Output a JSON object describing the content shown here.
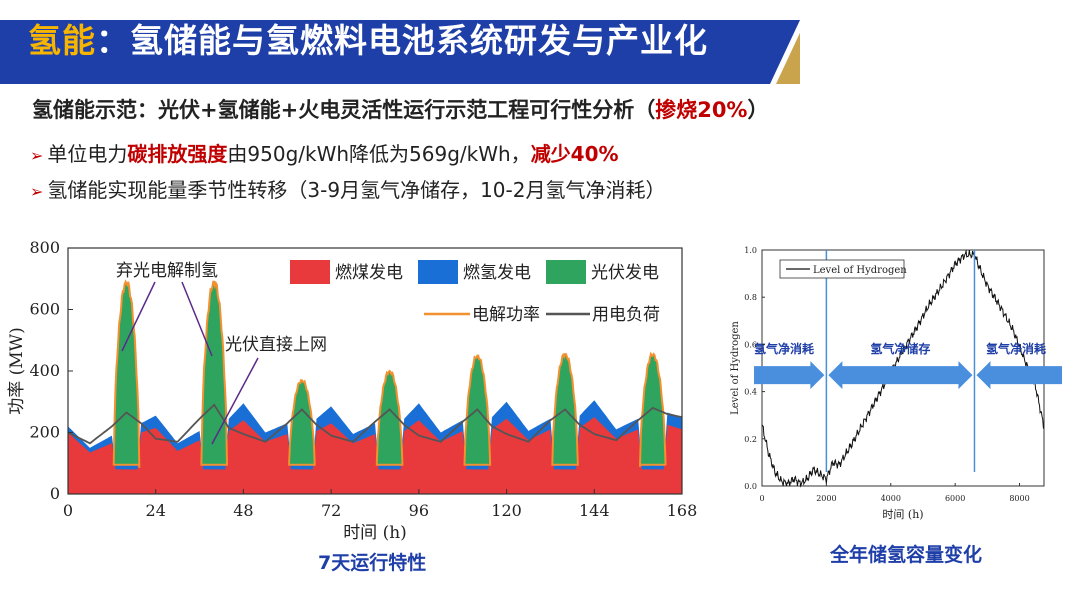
{
  "header": {
    "title_key": "氢能",
    "title_rest": "：氢储能与氢燃料电池系统研发与产业化",
    "logo_mark": "GSF",
    "logo_sub": "广州·南沙",
    "logo_cn": "大湾区科学论坛",
    "logo_en": "Greater Bay Area Science Forum",
    "colors": {
      "title_bar": "#1f3fa8",
      "accent": "#f7b500",
      "logo_bg": "#c9a44c"
    }
  },
  "subheading": {
    "label": "氢储能示范：",
    "text": "光伏+氢储能+火电灵活性运行示范工程可行性分析（",
    "highlight": "掺烧20%",
    "close": "）"
  },
  "bullets": [
    {
      "pre": "单位电力",
      "red1": "碳排放强度",
      "mid": "由950g/kWh降低为569g/kWh，",
      "red2": "减少40%"
    },
    {
      "pre": "氢储能实现能量季节性转移（3-9月氢气净储存，10-2月氢气净消耗）"
    }
  ],
  "captions": {
    "left": "7天运行特性",
    "right": "全年储氢容量变化"
  },
  "chart_data": [
    {
      "type": "area",
      "title": "",
      "xlabel": "时间 (h)",
      "ylabel": "功率 (MW)",
      "xlim": [
        0,
        168
      ],
      "ylim": [
        0,
        800
      ],
      "xticks": [
        0,
        24,
        48,
        72,
        96,
        120,
        144,
        168
      ],
      "yticks": [
        0,
        200,
        400,
        600,
        800
      ],
      "legend": [
        "燃煤发电",
        "燃氢发电",
        "光伏发电",
        "电解功率",
        "用电负荷"
      ],
      "legend_placement": "top-right",
      "colors": {
        "coal": "#e8393c",
        "h2": "#1a6fd6",
        "pv": "#2ea45e",
        "electrolysis": "#f39030",
        "load": "#555555"
      },
      "annotations": [
        "弃光电解制氢",
        "光伏直接上网"
      ],
      "series": [
        {
          "name": "燃煤发电",
          "x": [
            0,
            6,
            12,
            13,
            19,
            20,
            24,
            30,
            36,
            37,
            43,
            44,
            48,
            54,
            60,
            61,
            67,
            68,
            72,
            78,
            84,
            85,
            91,
            92,
            96,
            102,
            108,
            109,
            115,
            116,
            120,
            126,
            132,
            133,
            139,
            140,
            144,
            150,
            156,
            157,
            163,
            164,
            168
          ],
          "values": [
            200,
            135,
            165,
            80,
            80,
            200,
            215,
            140,
            175,
            80,
            80,
            205,
            240,
            170,
            195,
            80,
            80,
            205,
            230,
            165,
            195,
            80,
            80,
            205,
            240,
            170,
            205,
            80,
            80,
            210,
            245,
            175,
            210,
            80,
            80,
            215,
            250,
            180,
            210,
            80,
            80,
            225,
            210
          ]
        },
        {
          "name": "燃氢发电",
          "x": [
            0,
            6,
            12,
            13,
            19,
            20,
            24,
            30,
            36,
            37,
            43,
            44,
            48,
            54,
            60,
            61,
            67,
            68,
            72,
            78,
            84,
            85,
            91,
            92,
            96,
            102,
            108,
            109,
            115,
            116,
            120,
            126,
            132,
            133,
            139,
            140,
            144,
            150,
            156,
            157,
            163,
            164,
            168
          ],
          "values": [
            20,
            15,
            25,
            15,
            15,
            30,
            40,
            25,
            30,
            15,
            15,
            40,
            55,
            30,
            35,
            15,
            15,
            40,
            55,
            30,
            35,
            15,
            15,
            40,
            55,
            30,
            35,
            15,
            15,
            40,
            55,
            30,
            35,
            15,
            15,
            40,
            55,
            30,
            35,
            15,
            15,
            40,
            40
          ]
        },
        {
          "name": "光伏发电",
          "x": [
            11,
            13,
            15,
            17,
            19,
            21
          ],
          "values": [
            0,
            420,
            600,
            480,
            200,
            0
          ]
        },
        {
          "name": "电解功率",
          "peak_days": [
            {
              "x": 15,
              "y": 690
            },
            {
              "x": 39,
              "y": 690
            },
            {
              "x": 63,
              "y": 370
            },
            {
              "x": 87,
              "y": 400
            },
            {
              "x": 111,
              "y": 450
            },
            {
              "x": 135,
              "y": 455
            },
            {
              "x": 159,
              "y": 455
            }
          ]
        },
        {
          "name": "用电负荷",
          "x": [
            0,
            6,
            12,
            16,
            20,
            24,
            30,
            36,
            40,
            44,
            48,
            54,
            60,
            64,
            68,
            72,
            78,
            84,
            88,
            92,
            96,
            102,
            108,
            112,
            116,
            120,
            126,
            132,
            136,
            140,
            144,
            150,
            156,
            160,
            164,
            168
          ],
          "values": [
            200,
            165,
            220,
            265,
            230,
            180,
            170,
            245,
            290,
            215,
            195,
            170,
            230,
            275,
            225,
            190,
            170,
            235,
            275,
            225,
            190,
            170,
            235,
            275,
            220,
            195,
            170,
            240,
            275,
            225,
            195,
            175,
            240,
            280,
            260,
            250
          ]
        }
      ],
      "pv_peaks": [
        {
          "x": 15,
          "y": 690
        },
        {
          "x": 39,
          "y": 690
        },
        {
          "x": 63,
          "y": 370
        },
        {
          "x": 87,
          "y": 400
        },
        {
          "x": 111,
          "y": 450
        },
        {
          "x": 135,
          "y": 455
        },
        {
          "x": 159,
          "y": 455
        }
      ]
    },
    {
      "type": "line",
      "title": "",
      "xlabel": "时间 (h)",
      "ylabel": "Level of Hydrogen",
      "xlim": [
        0,
        8760
      ],
      "ylim": [
        0,
        1.0
      ],
      "xticks": [
        0,
        2000,
        4000,
        6000,
        8000
      ],
      "yticks": [
        0.0,
        0.2,
        0.4,
        0.6,
        0.8,
        1.0
      ],
      "legend": [
        "Level of Hydrogen"
      ],
      "legend_placement": "top-left",
      "series": [
        {
          "name": "Level of Hydrogen",
          "x": [
            0,
            200,
            400,
            600,
            800,
            1000,
            1200,
            1400,
            1600,
            1800,
            2000,
            2200,
            2400,
            2800,
            3200,
            3600,
            4000,
            4400,
            4800,
            5200,
            5600,
            6000,
            6300,
            6600,
            6800,
            7000,
            7400,
            7800,
            8200,
            8500,
            8760
          ],
          "values": [
            0.26,
            0.14,
            0.06,
            0.02,
            0.01,
            0.03,
            0.01,
            0.03,
            0.07,
            0.05,
            0.03,
            0.1,
            0.09,
            0.18,
            0.28,
            0.38,
            0.48,
            0.58,
            0.67,
            0.77,
            0.85,
            0.94,
            0.98,
            0.98,
            0.91,
            0.85,
            0.76,
            0.66,
            0.52,
            0.42,
            0.25
          ]
        }
      ],
      "phase_markers": [
        2000,
        6600
      ],
      "phases": [
        "氢气净消耗",
        "氢气净储存",
        "氢气净消耗"
      ]
    }
  ]
}
